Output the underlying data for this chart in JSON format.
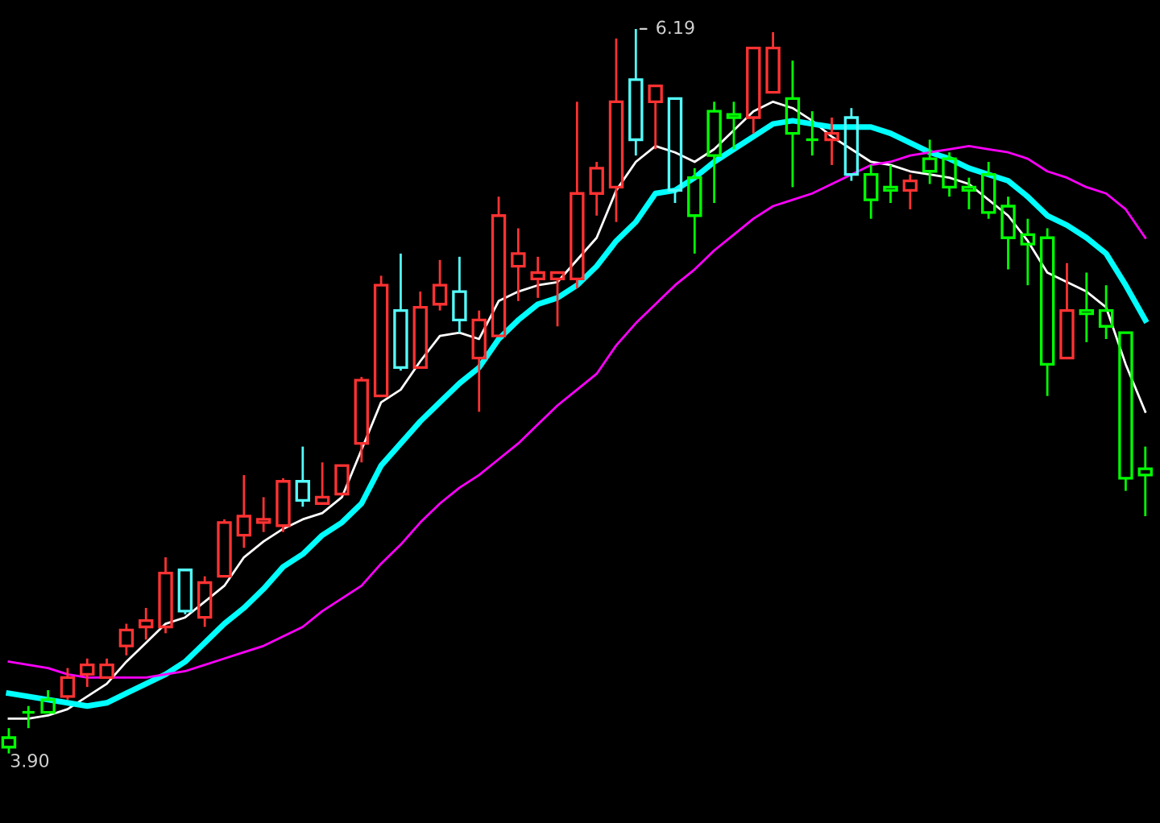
{
  "chart_data": {
    "type": "candlestick",
    "categories": [
      null,
      null,
      null,
      null,
      null,
      null,
      null,
      null,
      null,
      null,
      null,
      null,
      null,
      null,
      null,
      null,
      null,
      null,
      null,
      null,
      null,
      null,
      null,
      null,
      null,
      null,
      null,
      null,
      null,
      null,
      null,
      null,
      null,
      null,
      null,
      null,
      null,
      null,
      null,
      null,
      null,
      null,
      null,
      null,
      null,
      null,
      null,
      null,
      null,
      null,
      null,
      null,
      null,
      null,
      null,
      null,
      null,
      null,
      null
    ],
    "ohlc": [
      [
        3.95,
        3.98,
        3.9,
        3.92
      ],
      [
        4.03,
        4.05,
        3.98,
        4.03
      ],
      [
        4.07,
        4.1,
        4.03,
        4.03
      ],
      [
        4.08,
        4.17,
        4.07,
        4.14
      ],
      [
        4.15,
        4.2,
        4.11,
        4.18
      ],
      [
        4.14,
        4.2,
        4.14,
        4.18
      ],
      [
        4.24,
        4.31,
        4.21,
        4.29
      ],
      [
        4.3,
        4.36,
        4.26,
        4.32
      ],
      [
        4.3,
        4.52,
        4.28,
        4.47
      ],
      [
        4.48,
        4.48,
        4.34,
        4.35
      ],
      [
        4.33,
        4.46,
        4.3,
        4.44
      ],
      [
        4.46,
        4.64,
        4.46,
        4.63
      ],
      [
        4.59,
        4.78,
        4.55,
        4.65
      ],
      [
        4.63,
        4.71,
        4.6,
        4.64
      ],
      [
        4.62,
        4.77,
        4.6,
        4.76
      ],
      [
        4.76,
        4.87,
        4.68,
        4.7
      ],
      [
        4.69,
        4.82,
        4.69,
        4.71
      ],
      [
        4.72,
        4.81,
        4.72,
        4.81
      ],
      [
        4.88,
        5.09,
        4.82,
        5.08
      ],
      [
        5.03,
        5.41,
        5.03,
        5.38
      ],
      [
        5.3,
        5.48,
        5.11,
        5.12
      ],
      [
        5.12,
        5.36,
        5.12,
        5.31
      ],
      [
        5.32,
        5.46,
        5.3,
        5.38
      ],
      [
        5.36,
        5.47,
        5.23,
        5.27
      ],
      [
        5.15,
        5.3,
        4.98,
        5.27
      ],
      [
        5.22,
        5.66,
        5.22,
        5.6
      ],
      [
        5.44,
        5.56,
        5.33,
        5.48
      ],
      [
        5.4,
        5.47,
        5.34,
        5.42
      ],
      [
        5.4,
        5.42,
        5.25,
        5.42
      ],
      [
        5.4,
        5.96,
        5.37,
        5.67
      ],
      [
        5.67,
        5.77,
        5.6,
        5.75
      ],
      [
        5.69,
        6.16,
        5.58,
        5.96
      ],
      [
        6.03,
        6.19,
        5.79,
        5.84
      ],
      [
        5.96,
        6.01,
        5.81,
        6.01
      ],
      [
        5.97,
        5.97,
        5.64,
        5.68
      ],
      [
        5.72,
        5.75,
        5.48,
        5.6
      ],
      [
        5.93,
        5.96,
        5.64,
        5.79
      ],
      [
        5.92,
        5.96,
        5.81,
        5.91
      ],
      [
        5.91,
        6.13,
        5.86,
        6.13
      ],
      [
        5.99,
        6.18,
        5.99,
        6.13
      ],
      [
        5.97,
        6.09,
        5.69,
        5.86
      ],
      [
        5.84,
        5.93,
        5.79,
        5.84
      ],
      [
        5.84,
        5.91,
        5.76,
        5.86
      ],
      [
        5.91,
        5.94,
        5.71,
        5.73
      ],
      [
        5.73,
        5.76,
        5.59,
        5.65
      ],
      [
        5.69,
        5.76,
        5.64,
        5.68
      ],
      [
        5.68,
        5.73,
        5.62,
        5.71
      ],
      [
        5.78,
        5.84,
        5.7,
        5.74
      ],
      [
        5.78,
        5.8,
        5.66,
        5.69
      ],
      [
        5.69,
        5.72,
        5.62,
        5.68
      ],
      [
        5.73,
        5.77,
        5.59,
        5.61
      ],
      [
        5.63,
        5.66,
        5.43,
        5.53
      ],
      [
        5.54,
        5.59,
        5.38,
        5.51
      ],
      [
        5.53,
        5.56,
        5.03,
        5.13
      ],
      [
        5.15,
        5.45,
        5.15,
        5.3
      ],
      [
        5.3,
        5.42,
        5.2,
        5.29
      ],
      [
        5.3,
        5.38,
        5.21,
        5.25
      ],
      [
        5.23,
        5.23,
        4.73,
        4.77
      ],
      [
        4.8,
        4.87,
        4.65,
        4.78
      ]
    ],
    "colors": [
      "#00ff00",
      "#00ff00",
      "#00ff00",
      "#ff3232",
      "#ff3232",
      "#ff3232",
      "#ff3232",
      "#ff3232",
      "#ff3232",
      "#54fcfc",
      "#ff3232",
      "#ff3232",
      "#ff3232",
      "#ff3232",
      "#ff3232",
      "#54fcfc",
      "#ff3232",
      "#ff3232",
      "#ff3232",
      "#ff3232",
      "#54fcfc",
      "#ff3232",
      "#ff3232",
      "#54fcfc",
      "#ff3232",
      "#ff3232",
      "#ff3232",
      "#ff3232",
      "#ff3232",
      "#ff3232",
      "#ff3232",
      "#ff3232",
      "#54fcfc",
      "#ff3232",
      "#54fcfc",
      "#00ff00",
      "#00ff00",
      "#00ff00",
      "#ff3232",
      "#ff3232",
      "#00ff00",
      "#00ff00",
      "#ff3232",
      "#54fcfc",
      "#00ff00",
      "#00ff00",
      "#ff3232",
      "#00ff00",
      "#00ff00",
      "#00ff00",
      "#00ff00",
      "#00ff00",
      "#00ff00",
      "#00ff00",
      "#ff3232",
      "#00ff00",
      "#00ff00",
      "#00ff00",
      "#00ff00"
    ],
    "series": [
      {
        "type": "line",
        "color": "#ffffff",
        "values": [
          4.01,
          4.01,
          4.02,
          4.04,
          4.08,
          4.12,
          4.19,
          4.25,
          4.31,
          4.33,
          4.38,
          4.43,
          4.52,
          4.57,
          4.61,
          4.64,
          4.66,
          4.71,
          4.86,
          5.01,
          5.05,
          5.14,
          5.22,
          5.23,
          5.21,
          5.33,
          5.36,
          5.38,
          5.39,
          5.46,
          5.53,
          5.68,
          5.77,
          5.82,
          5.8,
          5.77,
          5.81,
          5.87,
          5.93,
          5.96,
          5.94,
          5.9,
          5.85,
          5.81,
          5.77,
          5.76,
          5.74,
          5.73,
          5.72,
          5.7,
          5.65,
          5.6,
          5.52,
          5.42,
          5.39,
          5.36,
          5.31,
          5.13,
          4.98
        ]
      },
      {
        "type": "line",
        "color": "#00ffff",
        "values": [
          4.09,
          4.08,
          4.07,
          4.06,
          4.05,
          4.06,
          4.09,
          4.12,
          4.15,
          4.19,
          4.25,
          4.31,
          4.36,
          4.42,
          4.49,
          4.53,
          4.59,
          4.63,
          4.69,
          4.81,
          4.88,
          4.95,
          5.01,
          5.07,
          5.12,
          5.21,
          5.27,
          5.32,
          5.34,
          5.38,
          5.44,
          5.52,
          5.58,
          5.67,
          5.68,
          5.72,
          5.77,
          5.81,
          5.85,
          5.89,
          5.9,
          5.89,
          5.88,
          5.88,
          5.88,
          5.86,
          5.83,
          5.8,
          5.78,
          5.75,
          5.73,
          5.71,
          5.66,
          5.6,
          5.57,
          5.53,
          5.48,
          5.38,
          5.27
        ]
      },
      {
        "type": "line",
        "color": "#ff00ff",
        "values": [
          4.19,
          4.18,
          4.17,
          4.15,
          4.14,
          4.14,
          4.14,
          4.14,
          4.15,
          4.16,
          4.18,
          4.2,
          4.22,
          4.24,
          4.27,
          4.3,
          4.35,
          4.39,
          4.43,
          4.5,
          4.56,
          4.63,
          4.69,
          4.74,
          4.78,
          4.83,
          4.88,
          4.94,
          5.0,
          5.05,
          5.1,
          5.19,
          5.26,
          5.32,
          5.38,
          5.43,
          5.49,
          5.54,
          5.59,
          5.63,
          5.65,
          5.67,
          5.7,
          5.73,
          5.76,
          5.77,
          5.79,
          5.8,
          5.81,
          5.82,
          5.81,
          5.8,
          5.78,
          5.74,
          5.72,
          5.69,
          5.67,
          5.62,
          5.53
        ]
      }
    ],
    "annotations": [
      "6.19",
      "3.90"
    ]
  }
}
